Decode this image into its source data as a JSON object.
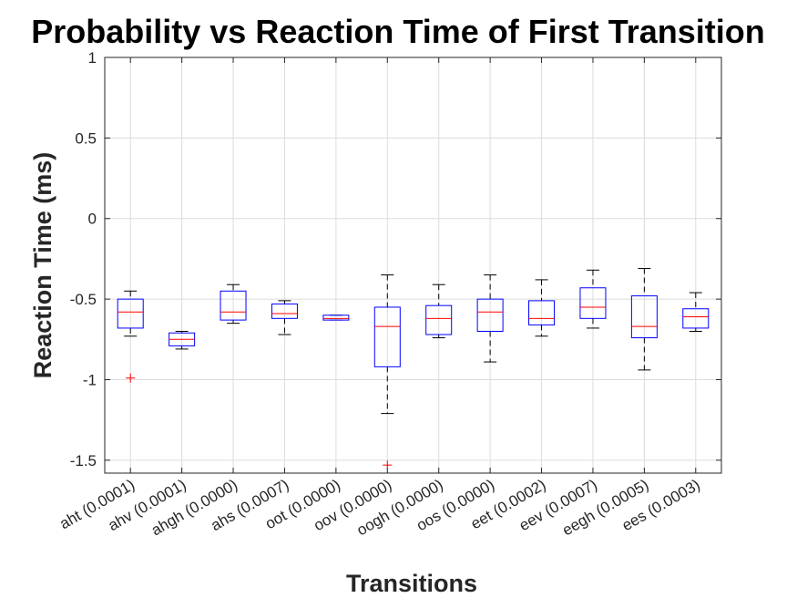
{
  "chart_data": {
    "type": "boxplot",
    "title": "Probability vs Reaction Time  of First Transition",
    "xlabel": "Transitions",
    "ylabel": "Reaction Time (ms)",
    "ylim": [
      -1.58,
      1.0
    ],
    "yticks": [
      1,
      0.5,
      0,
      -0.5,
      -1,
      -1.5
    ],
    "ytick_labels": [
      "1",
      "0.5",
      "0",
      "-0.5",
      "-1",
      "-1.5"
    ],
    "grid": true,
    "colors": {
      "box": "#0000ff",
      "median": "#ff0000",
      "whisker": "#000000",
      "outlier": "#ff0000",
      "grid": "#dcdcdc",
      "axis": "#262626"
    },
    "categories": [
      "aht (0.0001)",
      "ahv (0.0001)",
      "ahgh (0.0000)",
      "ahs (0.0007)",
      "oot (0.0000)",
      "oov (0.0000)",
      "oogh (0.0000)",
      "oos (0.0000)",
      "eet (0.0002)",
      "eev (0.0007)",
      "eegh (0.0005)",
      "ees (0.0003)"
    ],
    "boxes": [
      {
        "whisker_low": -0.73,
        "q1": -0.68,
        "median": -0.58,
        "q3": -0.5,
        "whisker_high": -0.45,
        "outliers": [
          -0.99
        ]
      },
      {
        "whisker_low": -0.81,
        "q1": -0.79,
        "median": -0.75,
        "q3": -0.71,
        "whisker_high": -0.7,
        "outliers": []
      },
      {
        "whisker_low": -0.65,
        "q1": -0.63,
        "median": -0.58,
        "q3": -0.45,
        "whisker_high": -0.41,
        "outliers": []
      },
      {
        "whisker_low": -0.72,
        "q1": -0.62,
        "median": -0.59,
        "q3": -0.53,
        "whisker_high": -0.51,
        "outliers": []
      },
      {
        "whisker_low": -0.63,
        "q1": -0.63,
        "median": -0.62,
        "q3": -0.6,
        "whisker_high": -0.6,
        "outliers": []
      },
      {
        "whisker_low": -1.21,
        "q1": -0.92,
        "median": -0.67,
        "q3": -0.55,
        "whisker_high": -0.35,
        "outliers": [
          -1.53
        ]
      },
      {
        "whisker_low": -0.74,
        "q1": -0.72,
        "median": -0.62,
        "q3": -0.54,
        "whisker_high": -0.41,
        "outliers": []
      },
      {
        "whisker_low": -0.89,
        "q1": -0.7,
        "median": -0.58,
        "q3": -0.5,
        "whisker_high": -0.35,
        "outliers": []
      },
      {
        "whisker_low": -0.73,
        "q1": -0.66,
        "median": -0.62,
        "q3": -0.51,
        "whisker_high": -0.38,
        "outliers": []
      },
      {
        "whisker_low": -0.68,
        "q1": -0.62,
        "median": -0.55,
        "q3": -0.43,
        "whisker_high": -0.32,
        "outliers": []
      },
      {
        "whisker_low": -0.94,
        "q1": -0.74,
        "median": -0.67,
        "q3": -0.48,
        "whisker_high": -0.31,
        "outliers": []
      },
      {
        "whisker_low": -0.7,
        "q1": -0.68,
        "median": -0.61,
        "q3": -0.56,
        "whisker_high": -0.46,
        "outliers": []
      }
    ]
  }
}
